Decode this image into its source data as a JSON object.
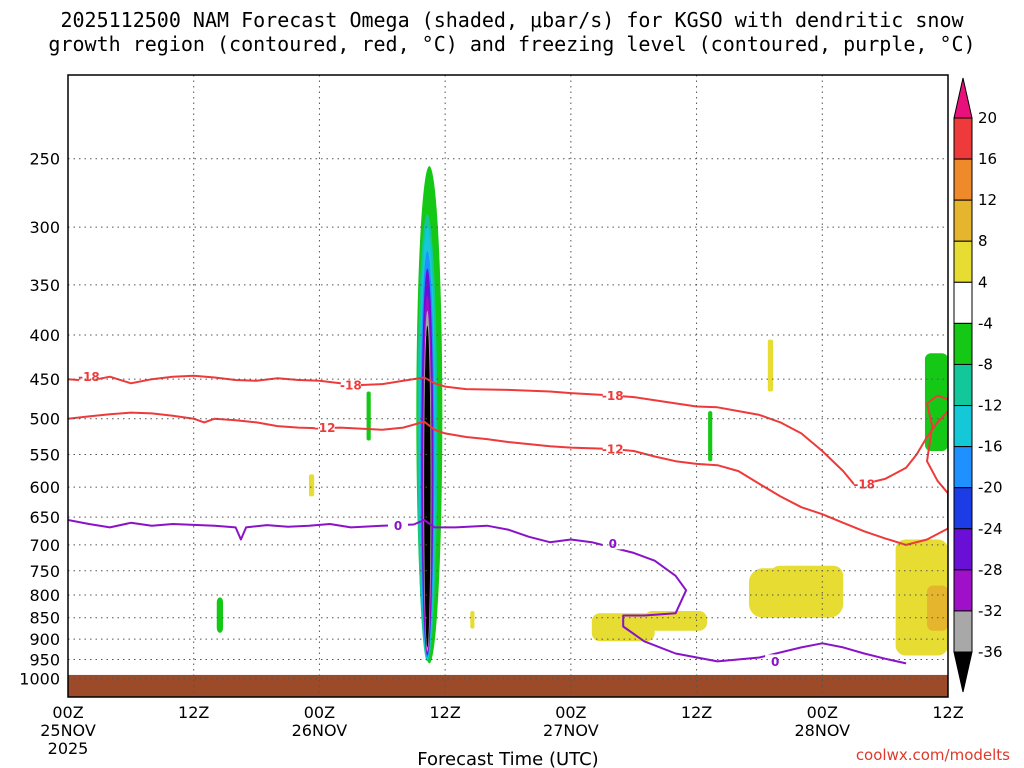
{
  "header": {
    "title_line1": "2025112500 NAM Forecast Omega (shaded, μbar/s) for KGSO with dendritic snow",
    "title_line2": "growth region (contoured, red, °C) and freezing level (contoured, purple, °C)"
  },
  "footer": {
    "credit": "coolwx.com/modelts"
  },
  "chart_data": {
    "type": "heatmap",
    "title": "2025112500 NAM Forecast Omega (shaded, μbar/s) for KGSO with dendritic snow growth region (contoured, red, °C) and freezing level (contoured, purple, °C)",
    "xlabel": "Forecast Time (UTC)",
    "ylabel": "",
    "x_range_hours": [
      0,
      84
    ],
    "y_range_hPa": [
      1050,
      200
    ],
    "y_scale": "log-pressure",
    "grid": true,
    "y_ticks": [
      250,
      300,
      350,
      400,
      450,
      500,
      550,
      600,
      650,
      700,
      750,
      800,
      850,
      900,
      950,
      1000
    ],
    "x_ticks": [
      {
        "hour": 0,
        "label": "00Z",
        "sub": "25NOV",
        "sub2": "2025"
      },
      {
        "hour": 12,
        "label": "12Z",
        "sub": "",
        "sub2": ""
      },
      {
        "hour": 24,
        "label": "00Z",
        "sub": "26NOV",
        "sub2": ""
      },
      {
        "hour": 36,
        "label": "12Z",
        "sub": "",
        "sub2": ""
      },
      {
        "hour": 48,
        "label": "00Z",
        "sub": "27NOV",
        "sub2": ""
      },
      {
        "hour": 60,
        "label": "12Z",
        "sub": "",
        "sub2": ""
      },
      {
        "hour": 72,
        "label": "00Z",
        "sub": "28NOV",
        "sub2": ""
      },
      {
        "hour": 84,
        "label": "12Z",
        "sub": "",
        "sub2": ""
      }
    ],
    "colorbar": {
      "labels": [
        "20",
        "16",
        "12",
        "8",
        "4",
        "-4",
        "-8",
        "-12",
        "-16",
        "-20",
        "-24",
        "-28",
        "-32",
        "-36"
      ],
      "colors": [
        "#e8107a",
        "#ee3a3a",
        "#ee8a2a",
        "#e6b52e",
        "#e6dc32",
        "#ffffff",
        "#16c816",
        "#12c89a",
        "#14c8d8",
        "#1e90ff",
        "#1c3ce6",
        "#6a10d6",
        "#a010c8",
        "#a8a8a8",
        "#000000"
      ]
    },
    "contours": [
      {
        "name": "-18 C",
        "color": "#ee3a3a",
        "label": "-18",
        "points": [
          [
            0,
            450
          ],
          [
            2,
            452
          ],
          [
            4,
            447
          ],
          [
            6,
            455
          ],
          [
            8,
            450
          ],
          [
            10,
            447
          ],
          [
            12,
            446
          ],
          [
            14,
            448
          ],
          [
            16,
            451
          ],
          [
            18,
            452
          ],
          [
            20,
            449
          ],
          [
            22,
            451
          ],
          [
            24,
            452
          ],
          [
            26,
            455
          ],
          [
            28,
            457
          ],
          [
            30,
            456
          ],
          [
            32,
            452
          ],
          [
            34,
            448
          ],
          [
            35,
            455
          ],
          [
            36,
            459
          ],
          [
            38,
            462
          ],
          [
            42,
            463
          ],
          [
            46,
            465
          ],
          [
            48,
            467
          ],
          [
            52,
            470
          ],
          [
            54,
            472
          ],
          [
            56,
            476
          ],
          [
            58,
            480
          ],
          [
            60,
            484
          ],
          [
            62,
            485
          ],
          [
            64,
            490
          ],
          [
            66,
            495
          ],
          [
            68,
            505
          ],
          [
            70,
            520
          ],
          [
            72,
            545
          ],
          [
            74,
            575
          ],
          [
            75,
            595
          ],
          [
            76,
            595
          ],
          [
            78,
            587
          ],
          [
            80,
            570
          ],
          [
            81,
            550
          ],
          [
            82,
            525
          ],
          [
            83,
            505
          ],
          [
            84,
            490
          ]
        ]
      },
      {
        "name": "-12 C",
        "color": "#ee3a3a",
        "label": "-12",
        "points": [
          [
            0,
            500
          ],
          [
            2,
            497
          ],
          [
            4,
            494
          ],
          [
            6,
            492
          ],
          [
            8,
            493
          ],
          [
            10,
            496
          ],
          [
            12,
            500
          ],
          [
            13,
            505
          ],
          [
            14,
            500
          ],
          [
            16,
            502
          ],
          [
            18,
            505
          ],
          [
            20,
            510
          ],
          [
            22,
            512
          ],
          [
            24,
            513
          ],
          [
            26,
            512
          ],
          [
            30,
            515
          ],
          [
            32,
            512
          ],
          [
            34,
            504
          ],
          [
            35,
            515
          ],
          [
            36,
            520
          ],
          [
            38,
            525
          ],
          [
            40,
            528
          ],
          [
            42,
            532
          ],
          [
            44,
            535
          ],
          [
            46,
            538
          ],
          [
            48,
            540
          ],
          [
            52,
            542
          ],
          [
            54,
            545
          ],
          [
            56,
            553
          ],
          [
            58,
            560
          ],
          [
            60,
            564
          ],
          [
            62,
            566
          ],
          [
            64,
            575
          ],
          [
            66,
            595
          ],
          [
            68,
            615
          ],
          [
            70,
            633
          ],
          [
            72,
            645
          ],
          [
            74,
            660
          ],
          [
            76,
            675
          ],
          [
            78,
            688
          ],
          [
            80,
            700
          ],
          [
            82,
            690
          ],
          [
            84,
            670
          ],
          [
            84,
            610
          ],
          [
            83,
            590
          ],
          [
            82,
            560
          ],
          [
            82.5,
            510
          ],
          [
            82,
            480
          ],
          [
            83,
            470
          ],
          [
            84,
            475
          ]
        ]
      },
      {
        "name": "0 C",
        "color": "#8a12c8",
        "label": "0",
        "points": [
          [
            0,
            655
          ],
          [
            2,
            662
          ],
          [
            4,
            668
          ],
          [
            6,
            660
          ],
          [
            8,
            665
          ],
          [
            10,
            662
          ],
          [
            14,
            665
          ],
          [
            16,
            668
          ],
          [
            16.5,
            690
          ],
          [
            17,
            668
          ],
          [
            19,
            664
          ],
          [
            21,
            667
          ],
          [
            23,
            665
          ],
          [
            25,
            662
          ],
          [
            27,
            668
          ],
          [
            30,
            665
          ],
          [
            33,
            663
          ],
          [
            34,
            655
          ],
          [
            35,
            668
          ],
          [
            37,
            668
          ],
          [
            40,
            665
          ],
          [
            42,
            672
          ],
          [
            44,
            685
          ],
          [
            46,
            695
          ],
          [
            48,
            690
          ],
          [
            50,
            695
          ],
          [
            52,
            705
          ],
          [
            54,
            715
          ],
          [
            56,
            730
          ],
          [
            58,
            760
          ],
          [
            59,
            790
          ],
          [
            58,
            840
          ],
          [
            55,
            845
          ],
          [
            53,
            845
          ],
          [
            53,
            870
          ],
          [
            55,
            905
          ],
          [
            58,
            935
          ],
          [
            62,
            955
          ],
          [
            66,
            945
          ],
          [
            70,
            920
          ],
          [
            72,
            910
          ],
          [
            74,
            920
          ],
          [
            76,
            935
          ],
          [
            78,
            948
          ],
          [
            80,
            960
          ]
        ]
      }
    ],
    "omega_features": [
      {
        "name": "main updraft core",
        "hour_center": 34.3,
        "top_hPa": 255,
        "bottom_hPa": 960,
        "min_value": -36
      },
      {
        "name": "weak ascent upper left",
        "hour": 14.5,
        "top_hPa": 810,
        "bottom_hPa": 880,
        "value": -6
      },
      {
        "name": "subsidence band 27NOV",
        "hour_range": [
          50,
          60
        ],
        "top_hPa": 840,
        "bottom_hPa": 900,
        "value": 4
      },
      {
        "name": "subsidence 28NOV",
        "hour_range": [
          66,
          84
        ],
        "top_hPa": 740,
        "bottom_hPa": 940,
        "value": 6
      },
      {
        "name": "green strip right",
        "hour_range": [
          82,
          84
        ],
        "top_hPa": 420,
        "bottom_hPa": 545,
        "value": -6
      }
    ],
    "terrain_hPa": 990
  }
}
